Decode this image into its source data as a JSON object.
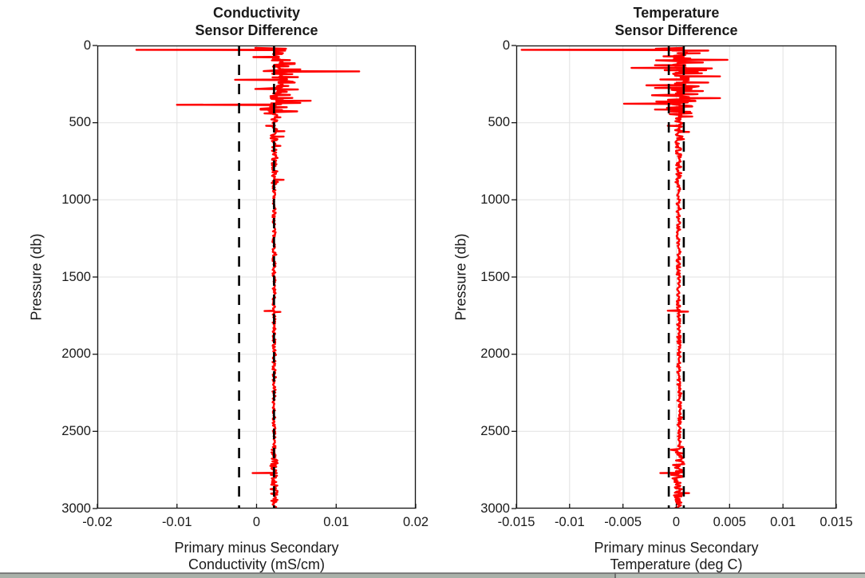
{
  "figure": {
    "background": "#ffffff",
    "text_color": "#1a1a1a",
    "grid_color": "#e2e2e2",
    "axis_color": "#161616"
  },
  "bottom_bar": {
    "border_color": "#7d7d7d",
    "left_color": "#a9b1a9",
    "right_color": "#b6beb6",
    "divider_color": "#6f6f6f"
  },
  "chart_data": [
    {
      "type": "line",
      "orientation": "vertical-profile",
      "title_lines": [
        "Conductivity",
        "Sensor Difference"
      ],
      "xlabel_lines": [
        "Primary minus Secondary",
        "Conductivity (mS/cm)"
      ],
      "ylabel": "Pressure (db)",
      "xlim": [
        -0.02,
        0.02
      ],
      "xtick_values": [
        -0.02,
        -0.01,
        0,
        0.01,
        0.02
      ],
      "xtick_labels": [
        "-0.02",
        "-0.01",
        "0",
        "0.01",
        "0.02"
      ],
      "ylim": [
        0,
        3000
      ],
      "y_axis_reversed": true,
      "ytick_values": [
        0,
        500,
        1000,
        1500,
        2000,
        2500,
        3000
      ],
      "ytick_labels": [
        "0",
        "500",
        "1000",
        "1500",
        "2000",
        "2500",
        "3000"
      ],
      "grid": true,
      "reference_lines": [
        {
          "value": -0.0022,
          "style": "dashed",
          "color": "#000000"
        },
        {
          "value": 0.0022,
          "style": "dashed",
          "color": "#000000"
        }
      ],
      "series": [
        {
          "name": "primary-minus-secondary-conductivity",
          "color": "#ff0000",
          "noise_seed": 7,
          "p_start": 15,
          "sample_step": 5.8,
          "baseline_points": [
            [
              0,
              0.0026
            ],
            [
              150,
              0.003
            ],
            [
              300,
              0.0026
            ],
            [
              450,
              0.0023
            ],
            [
              600,
              0.0022
            ],
            [
              3000,
              0.0022
            ]
          ],
          "noise_bands": [
            {
              "range": [
                0,
                450
              ],
              "amp": 0.0011,
              "burst_prob": 0.14,
              "burst_scale": 2.6
            },
            {
              "range": [
                450,
                620
              ],
              "amp": 0.0005,
              "burst_prob": 0.06,
              "burst_scale": 2
            },
            {
              "range": [
                620,
                900
              ],
              "amp": 0.00032,
              "burst_prob": 0.04,
              "burst_scale": 2
            },
            {
              "range": [
                900,
                2600
              ],
              "amp": 0.0002,
              "burst_prob": 0.02,
              "burst_scale": 2
            },
            {
              "range": [
                2600,
                2950
              ],
              "amp": 0.00045,
              "burst_prob": 0.05,
              "burst_scale": 1.8
            },
            {
              "range": [
                2950,
                3001
              ],
              "amp": 0.0003,
              "burst_prob": 0,
              "burst_scale": 1
            }
          ],
          "spikes": [
            [
              28,
              -0.0151
            ],
            [
              33,
              0.0036
            ],
            [
              55,
              0.0032
            ],
            [
              75,
              -0.0004
            ],
            [
              95,
              0.0042
            ],
            [
              115,
              0.0048
            ],
            [
              135,
              0.004
            ],
            [
              155,
              0.0055
            ],
            [
              168,
              0.0129
            ],
            [
              185,
              0.0045
            ],
            [
              205,
              0.0052
            ],
            [
              222,
              -0.0027
            ],
            [
              240,
              0.0048
            ],
            [
              262,
              0.004
            ],
            [
              285,
              0.0052
            ],
            [
              300,
              0.0038
            ],
            [
              320,
              0.0042
            ],
            [
              340,
              0.0045
            ],
            [
              358,
              0.0068
            ],
            [
              372,
              0.0055
            ],
            [
              384,
              -0.01
            ],
            [
              400,
              0.0038
            ],
            [
              418,
              0.0032
            ],
            [
              440,
              0.001
            ],
            [
              465,
              0.003
            ],
            [
              520,
              0.0012
            ],
            [
              555,
              0.0035
            ],
            [
              590,
              0.0034
            ],
            [
              650,
              0.003
            ],
            [
              870,
              0.0034
            ],
            [
              1720,
              0.001
            ],
            [
              1726,
              0.003
            ],
            [
              2770,
              -0.0005
            ],
            [
              2910,
              0.0026
            ]
          ]
        }
      ]
    },
    {
      "type": "line",
      "orientation": "vertical-profile",
      "title_lines": [
        "Temperature",
        "Sensor Difference"
      ],
      "xlabel_lines": [
        "Primary minus Secondary",
        "Temperature (deg C)"
      ],
      "ylabel": "Pressure (db)",
      "xlim": [
        -0.015,
        0.015
      ],
      "xtick_values": [
        -0.015,
        -0.01,
        -0.005,
        0,
        0.005,
        0.01,
        0.015
      ],
      "xtick_labels": [
        "-0.015",
        "-0.01",
        "-0.005",
        "0",
        "0.005",
        "0.01",
        "0.015"
      ],
      "ylim": [
        0,
        3000
      ],
      "y_axis_reversed": true,
      "ytick_values": [
        0,
        500,
        1000,
        1500,
        2000,
        2500,
        3000
      ],
      "ytick_labels": [
        "0",
        "500",
        "1000",
        "1500",
        "2000",
        "2500",
        "3000"
      ],
      "grid": true,
      "reference_lines": [
        {
          "value": -0.0007,
          "style": "dashed",
          "color": "#000000"
        },
        {
          "value": 0.0007,
          "style": "dashed",
          "color": "#000000"
        }
      ],
      "series": [
        {
          "name": "primary-minus-secondary-temperature",
          "color": "#ff0000",
          "noise_seed": 13,
          "p_start": 15,
          "sample_step": 5.8,
          "baseline_points": [
            [
              0,
              0.0005
            ],
            [
              150,
              0.0009
            ],
            [
              300,
              0.0004
            ],
            [
              500,
              0.0002
            ],
            [
              1500,
              0.0002
            ],
            [
              2500,
              0.0003
            ],
            [
              3000,
              0.0002
            ]
          ],
          "noise_bands": [
            {
              "range": [
                0,
                450
              ],
              "amp": 0.0012,
              "burst_prob": 0.14,
              "burst_scale": 2.4
            },
            {
              "range": [
                450,
                620
              ],
              "amp": 0.0004,
              "burst_prob": 0.05,
              "burst_scale": 2
            },
            {
              "range": [
                620,
                900
              ],
              "amp": 0.00028,
              "burst_prob": 0.04,
              "burst_scale": 2
            },
            {
              "range": [
                900,
                2600
              ],
              "amp": 0.00018,
              "burst_prob": 0.02,
              "burst_scale": 2
            },
            {
              "range": [
                2600,
                2950
              ],
              "amp": 0.0005,
              "burst_prob": 0.05,
              "burst_scale": 1.8
            },
            {
              "range": [
                2950,
                3001
              ],
              "amp": 0.0003,
              "burst_prob": 0,
              "burst_scale": 1
            }
          ],
          "spikes": [
            [
              28,
              -0.0145
            ],
            [
              33,
              0.003
            ],
            [
              50,
              0.0022
            ],
            [
              70,
              -0.0012
            ],
            [
              93,
              0.0048
            ],
            [
              110,
              0.0025
            ],
            [
              128,
              -0.002
            ],
            [
              145,
              -0.0042
            ],
            [
              160,
              0.0028
            ],
            [
              180,
              0.0024
            ],
            [
              200,
              0.0041
            ],
            [
              220,
              -0.0015
            ],
            [
              240,
              0.003
            ],
            [
              258,
              -0.0028
            ],
            [
              275,
              -0.002
            ],
            [
              295,
              0.0025
            ],
            [
              315,
              0.002
            ],
            [
              341,
              0.0041
            ],
            [
              360,
              0.0018
            ],
            [
              377,
              -0.0049
            ],
            [
              395,
              0.0015
            ],
            [
              415,
              -0.002
            ],
            [
              430,
              0.0013
            ],
            [
              460,
              0.0015
            ],
            [
              520,
              -0.0008
            ],
            [
              560,
              0.0012
            ],
            [
              1718,
              -0.0008
            ],
            [
              1724,
              0.0011
            ],
            [
              2770,
              -0.0015
            ],
            [
              2900,
              0.0012
            ]
          ]
        }
      ]
    }
  ]
}
